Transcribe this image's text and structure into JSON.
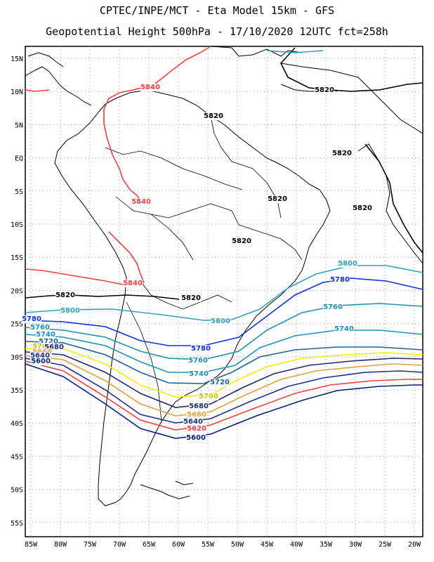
{
  "header": {
    "line1": "CPTEC/INPE/MCT -  Eta Model 15km - GFS",
    "line2": "Geopotential Height 500hPa - 17/10/2020 12UTC fct=258h"
  },
  "lat_labels": [
    "15N",
    "10N",
    "5N",
    "EQ",
    "5S",
    "10S",
    "15S",
    "20S",
    "25S",
    "30S",
    "35S",
    "40S",
    "45S",
    "50S",
    "55S"
  ],
  "lon_labels": [
    "85W",
    "80W",
    "75W",
    "70W",
    "65W",
    "60W",
    "55W",
    "50W",
    "45W",
    "40W",
    "35W",
    "30W",
    "25W",
    "20W"
  ],
  "colors": {
    "c5620": "#08207a",
    "c5640": "#1a2e8c",
    "c5660": "#f08070",
    "c5680": "#20286e",
    "c5660b": "#e0a040",
    "c5700": "#f0f000",
    "c5720": "#2060a0",
    "c5740": "#2090c0",
    "c5760": "#2090b0",
    "c5780": "#1030e0",
    "c5800": "#30a0c0",
    "c5820": "#000000",
    "c5840": "#f04040",
    "coast": "#000000",
    "grid": "#999999"
  },
  "contour_labels": [
    {
      "text": "5840",
      "color": "#f04040"
    },
    {
      "text": "5820",
      "color": "#000000"
    },
    {
      "text": "5820",
      "color": "#000000"
    },
    {
      "text": "5820",
      "color": "#000000"
    },
    {
      "text": "5840",
      "color": "#f04040"
    },
    {
      "text": "5820",
      "color": "#000000"
    },
    {
      "text": "5820",
      "color": "#000000"
    },
    {
      "text": "5820",
      "color": "#000000"
    },
    {
      "text": "5800",
      "color": "#30a0c0"
    },
    {
      "text": "5780",
      "color": "#1030e0"
    },
    {
      "text": "5760",
      "color": "#2090b0"
    },
    {
      "text": "5740",
      "color": "#2090c0"
    },
    {
      "text": "5840",
      "color": "#f04040"
    },
    {
      "text": "5820",
      "color": "#000000"
    },
    {
      "text": "5820",
      "color": "#000000"
    },
    {
      "text": "5800",
      "color": "#30a0c0"
    },
    {
      "text": "5800",
      "color": "#30a0c0"
    },
    {
      "text": "5780",
      "color": "#1030e0"
    },
    {
      "text": "5760",
      "color": "#2090b0"
    },
    {
      "text": "5740",
      "color": "#2090c0"
    },
    {
      "text": "5720",
      "color": "#2060a0"
    },
    {
      "text": "5780",
      "color": "#1030e0"
    },
    {
      "text": "5760",
      "color": "#2090b0"
    },
    {
      "text": "5740",
      "color": "#2090c0"
    },
    {
      "text": "5720",
      "color": "#2060a0"
    },
    {
      "text": "5700",
      "color": "#d0c000"
    },
    {
      "text": "5680",
      "color": "#20286e"
    },
    {
      "text": "5660",
      "color": "#e0a040"
    },
    {
      "text": "5640",
      "color": "#1a2e8c"
    },
    {
      "text": "5620",
      "color": "#f04040"
    },
    {
      "text": "5600",
      "color": "#08207a"
    },
    {
      "text": "5700",
      "color": "#d0c000"
    },
    {
      "text": "5680",
      "color": "#20286e"
    },
    {
      "text": "5660",
      "color": "#e0a040"
    },
    {
      "text": "5640",
      "color": "#1a2e8c"
    },
    {
      "text": "5600",
      "color": "#08207a"
    }
  ]
}
